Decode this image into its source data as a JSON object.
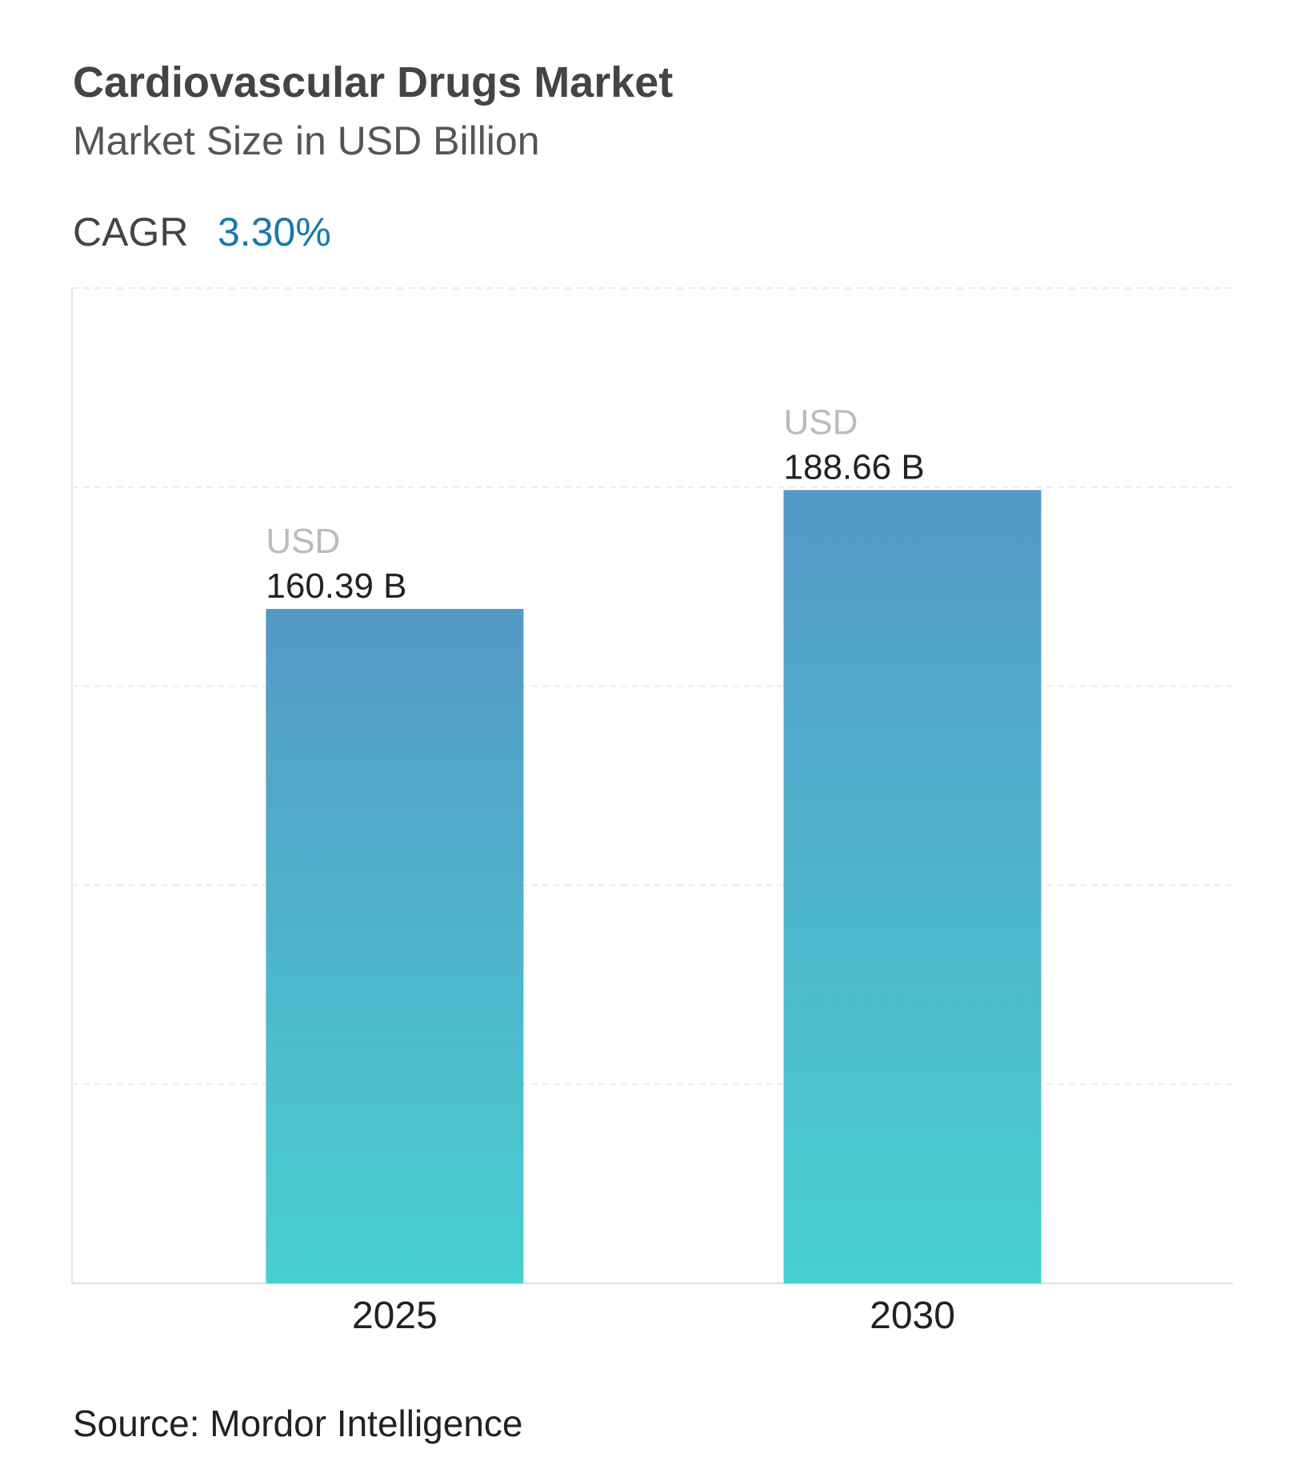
{
  "chart_data": {
    "type": "bar",
    "title": "Cardiovascular Drugs Market",
    "subtitle": "Market Size in USD Billion",
    "cagr_label": "CAGR",
    "cagr_value": "3.30%",
    "categories": [
      "2025",
      "2030"
    ],
    "values": [
      160.39,
      188.66
    ],
    "value_labels": [
      "160.39 B",
      "188.66 B"
    ],
    "value_label_prefix": "USD",
    "color_top": "#5599c6",
    "color_bottom": "#48d0d0",
    "ylim": [
      0,
      236.7
    ],
    "yticks": [
      47.34,
      94.68,
      142.02,
      189.36,
      236.7
    ],
    "grid": true,
    "source": "Source: Mordor Intelligence"
  }
}
